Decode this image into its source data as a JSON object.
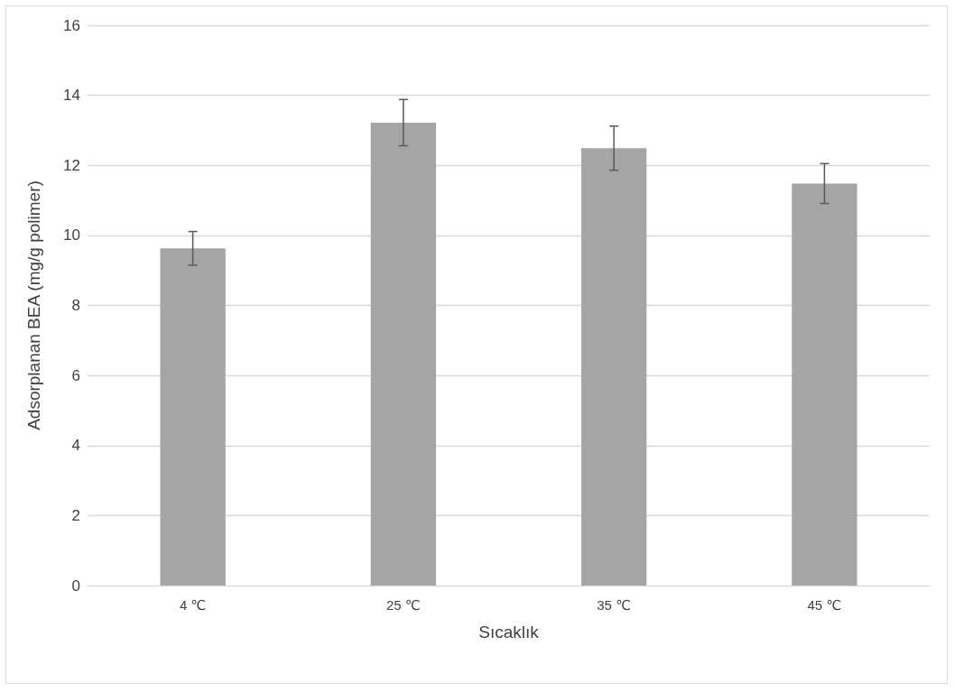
{
  "chart_data": {
    "type": "bar",
    "xlabel": "Sıcaklık",
    "ylabel": "Adsorplanan BEA (mg/g polimer)",
    "categories": [
      "4 ℃",
      "25 ℃",
      "35 ℃",
      "45 ℃"
    ],
    "values": [
      9.63,
      13.22,
      12.49,
      11.48
    ],
    "errors": [
      0.48,
      0.66,
      0.63,
      0.57
    ],
    "color": "#a5a5a5",
    "ylim": [
      0,
      16
    ],
    "yticks": [
      0,
      2,
      4,
      6,
      8,
      10,
      12,
      14,
      16
    ],
    "grid": "y"
  }
}
